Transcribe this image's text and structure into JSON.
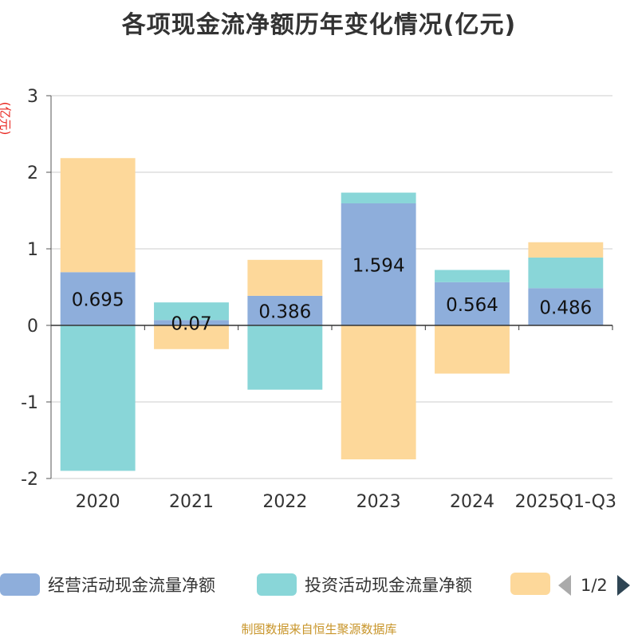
{
  "chart_data": {
    "type": "bar",
    "stacked": true,
    "title": "各项现金流净额历年变化情况(亿元)",
    "ylabel": "(亿元)",
    "xlabel": "",
    "ylim": [
      -2,
      3
    ],
    "yticks": [
      -2,
      -1,
      0,
      1,
      2,
      3
    ],
    "grid": true,
    "categories": [
      "2020",
      "2021",
      "2022",
      "2023",
      "2024",
      "2025Q1-Q3"
    ],
    "series": [
      {
        "name": "经营活动现金流量净额",
        "color": "#8eaedb",
        "values": [
          0.695,
          0.07,
          0.386,
          1.594,
          0.564,
          0.486
        ],
        "labels": [
          "0.695",
          "0.07",
          "0.386",
          "1.594",
          "0.564",
          "0.486"
        ]
      },
      {
        "name": "投资活动现金流量净额",
        "color": "#89d6d8",
        "values": [
          -1.9,
          0.23,
          -0.84,
          0.14,
          0.16,
          0.4
        ]
      },
      {
        "name": "",
        "color": "#fdd89a",
        "values": [
          1.49,
          -0.31,
          0.47,
          -1.75,
          -0.63,
          0.2
        ]
      }
    ],
    "legend": {
      "position": "bottom",
      "page": "1/2"
    }
  },
  "source": "制图数据来自恒生聚源数据库"
}
